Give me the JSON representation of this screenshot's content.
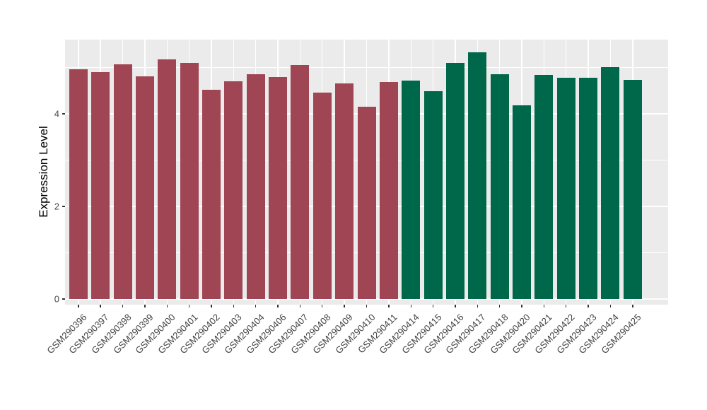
{
  "chart_data": {
    "type": "bar",
    "ylabel": "Expression Level",
    "yticks": [
      0,
      2,
      4
    ],
    "yticks_minor": [
      1,
      3,
      5
    ],
    "ylim": [
      0,
      5.6
    ],
    "grid": "on",
    "panel_bg": "#ebebeb",
    "grid_color": "#ffffff",
    "axis_text_color": "#4d4d4d",
    "tick_color": "#333333",
    "group_colors": {
      "red": "#a04554",
      "green": "#00684a"
    },
    "categories": [
      "GSM290396",
      "GSM290397",
      "GSM290398",
      "GSM290399",
      "GSM290400",
      "GSM290401",
      "GSM290402",
      "GSM290403",
      "GSM290404",
      "GSM290406",
      "GSM290407",
      "GSM290408",
      "GSM290409",
      "GSM290410",
      "GSM290411",
      "GSM290414",
      "GSM290415",
      "GSM290416",
      "GSM290417",
      "GSM290418",
      "GSM290420",
      "GSM290421",
      "GSM290422",
      "GSM290423",
      "GSM290424",
      "GSM290425"
    ],
    "values": [
      4.96,
      4.9,
      5.07,
      4.8,
      5.17,
      5.09,
      4.52,
      4.7,
      4.85,
      4.79,
      5.05,
      4.46,
      4.66,
      4.15,
      4.69,
      4.72,
      4.49,
      5.1,
      5.32,
      4.85,
      4.18,
      4.83,
      4.77,
      4.77,
      5.0,
      4.73
    ],
    "groups": [
      "red",
      "red",
      "red",
      "red",
      "red",
      "red",
      "red",
      "red",
      "red",
      "red",
      "red",
      "red",
      "red",
      "red",
      "red",
      "green",
      "green",
      "green",
      "green",
      "green",
      "green",
      "green",
      "green",
      "green",
      "green",
      "green"
    ]
  }
}
